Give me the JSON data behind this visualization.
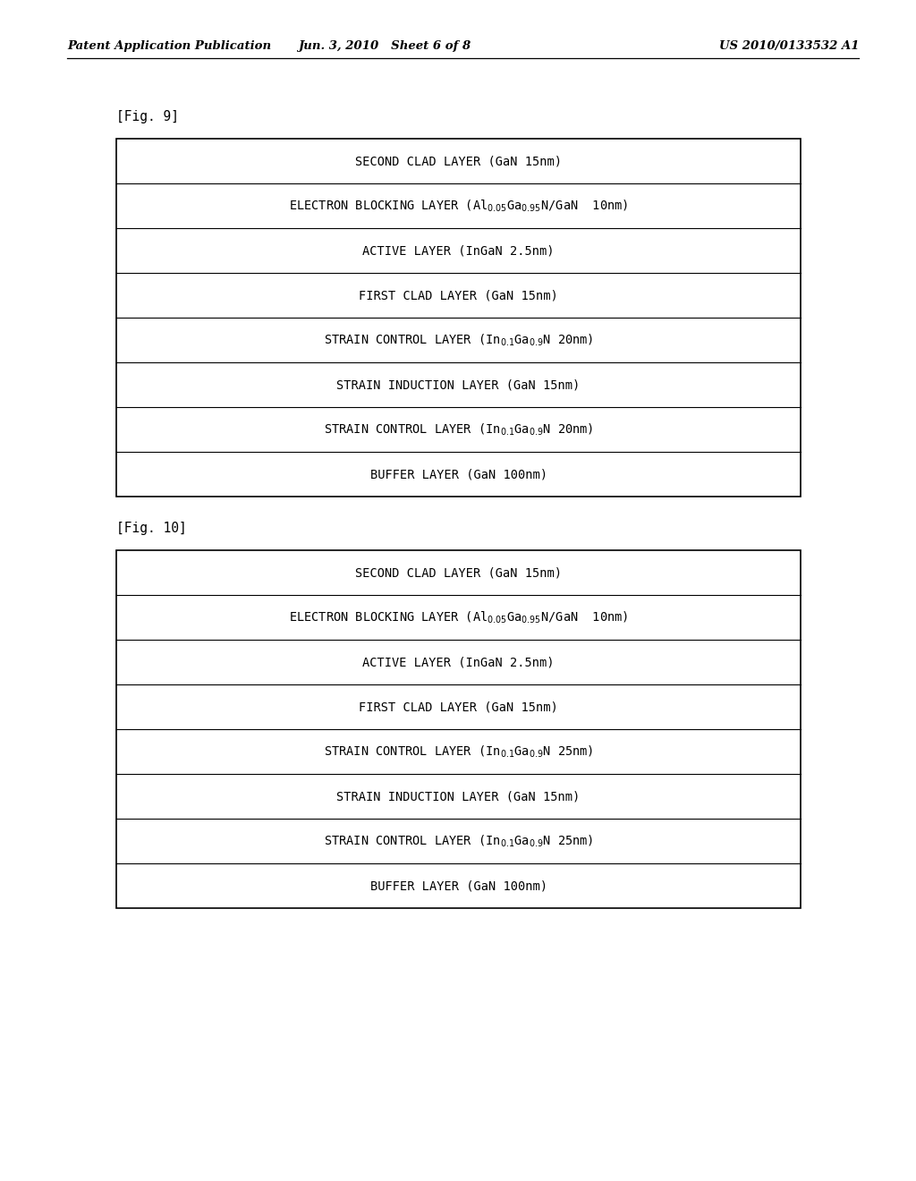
{
  "page_header_left": "Patent Application Publication",
  "page_header_center": "Jun. 3, 2010   Sheet 6 of 8",
  "page_header_right": "US 2010/0133532 A1",
  "fig9_label": "[Fig. 9]",
  "fig10_label": "[Fig. 10]",
  "fig9_layers": [
    {
      "type": "simple",
      "text": "SECOND CLAD LAYER (GaN 15nm)"
    },
    {
      "type": "subscript",
      "parts": [
        "ELECTRON BLOCKING LAYER (Al ",
        "0.05",
        "Ga ",
        "0.95",
        "N/GaN  10nm)"
      ]
    },
    {
      "type": "simple",
      "text": "ACTIVE LAYER (InGaN 2.5nm)"
    },
    {
      "type": "simple",
      "text": "FIRST CLAD LAYER (GaN 15nm)"
    },
    {
      "type": "subscript",
      "parts": [
        "STRAIN CONTROL LAYER (In",
        "0.",
        "Ga",
        "0.9",
        "N 20nm)"
      ],
      "style": "strain"
    },
    {
      "type": "simple",
      "text": "STRAIN INDUCTION LAYER (GaN 15nm)"
    },
    {
      "type": "subscript",
      "parts": [
        "STRAIN CONTROL LAYER (In",
        "0.",
        "Ga",
        "0.9",
        "N 20nm)"
      ],
      "style": "strain"
    },
    {
      "type": "simple",
      "text": "BUFFER LAYER (GaN 100nm)"
    }
  ],
  "fig10_layers": [
    {
      "type": "simple",
      "text": "SECOND CLAD LAYER (GaN 15nm)"
    },
    {
      "type": "subscript",
      "parts": [
        "ELECTRON BLOCKING LAYER (Al ",
        "0.05",
        "Ga ",
        "0.95",
        "N/GaN  10nm)"
      ]
    },
    {
      "type": "simple",
      "text": "ACTIVE LAYER (InGaN 2.5nm)"
    },
    {
      "type": "simple",
      "text": "FIRST CLAD LAYER (GaN 15nm)"
    },
    {
      "type": "subscript",
      "parts": [
        "STRAIN CONTROL LAYER (In",
        "0.",
        "Ga",
        "0.9",
        "N 25nm)"
      ],
      "style": "strain"
    },
    {
      "type": "simple",
      "text": "STRAIN INDUCTION LAYER (GaN 15nm)"
    },
    {
      "type": "subscript",
      "parts": [
        "STRAIN CONTROL LAYER (In",
        "0.",
        "Ga",
        "0.9",
        "N 25nm)"
      ],
      "style": "strain"
    },
    {
      "type": "simple",
      "text": "BUFFER LAYER (GaN 100nm)"
    }
  ],
  "bg_color": "#ffffff",
  "box_bg": "#ffffff",
  "box_border": "#000000",
  "text_color": "#000000",
  "header_fontsize": 9.5,
  "label_fontsize": 10.5,
  "layer_fontsize": 9.8
}
